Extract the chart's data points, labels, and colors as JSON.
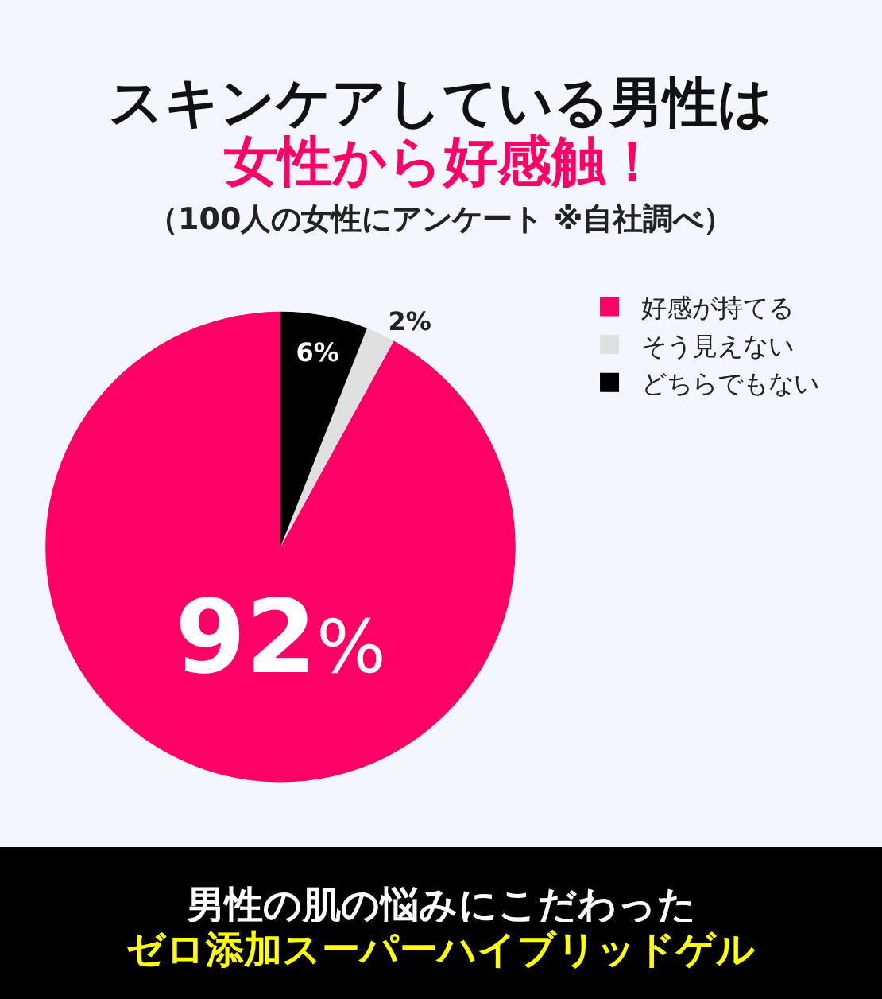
{
  "chart_data": {
    "type": "pie",
    "title": "スキンケアしている男性は",
    "subtitle": "女性から好感触！",
    "categories": [
      "好感が持てる",
      "そう見えない",
      "どちらでもない"
    ],
    "values": [
      92,
      2,
      6
    ],
    "colors": [
      "#ff0066",
      "#e0e0e0",
      "#000000"
    ],
    "value_labels": [
      "92%",
      "2%",
      "6%"
    ],
    "legend": "top right",
    "annotations": [
      "（100人の女性にアンケート ※自社調べ）",
      "男性の肌の悩みにこだわった",
      "ゼロ添加スーパーハイブリッドゲル"
    ]
  }
}
